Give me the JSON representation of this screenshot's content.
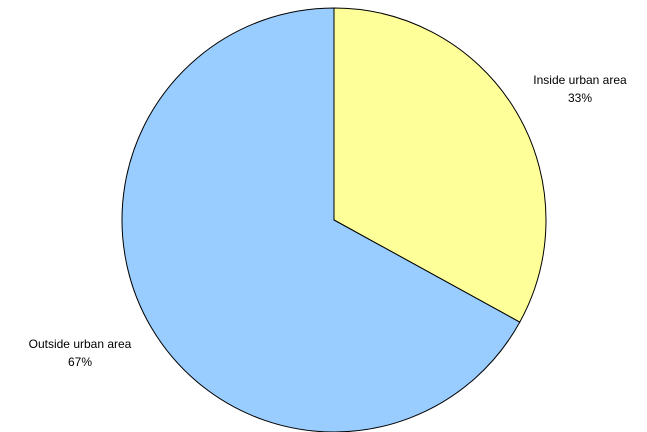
{
  "chart_data": {
    "type": "pie",
    "title": "",
    "slices": [
      {
        "label": "Inside urban area",
        "value": 33,
        "value_label": "33%",
        "color": "#FFFF99"
      },
      {
        "label": "Outside urban area",
        "value": 67,
        "value_label": "67%",
        "color": "#99CCFF"
      }
    ],
    "start_angle": "12 o'clock",
    "direction": "clockwise",
    "legend": "none",
    "border_color": "#000000"
  }
}
